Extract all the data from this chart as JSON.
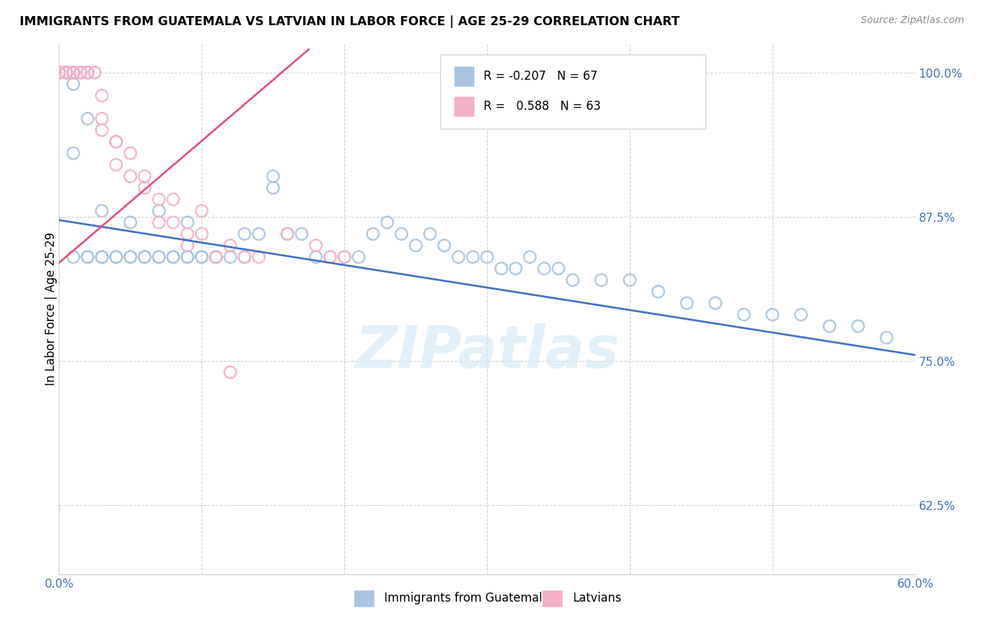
{
  "title": "IMMIGRANTS FROM GUATEMALA VS LATVIAN IN LABOR FORCE | AGE 25-29 CORRELATION CHART",
  "source": "Source: ZipAtlas.com",
  "ylabel": "In Labor Force | Age 25-29",
  "watermark": "ZIPatlas",
  "legend_label1": "Immigrants from Guatemala",
  "legend_label2": "Latvians",
  "r1": "-0.207",
  "n1": "67",
  "r2": "0.588",
  "n2": "63",
  "xmin": 0.0,
  "xmax": 0.6,
  "ymin": 0.565,
  "ymax": 1.025,
  "yticks": [
    0.625,
    0.75,
    0.875,
    1.0
  ],
  "ytick_labels": [
    "62.5%",
    "75.0%",
    "87.5%",
    "100.0%"
  ],
  "xticks": [
    0.0,
    0.1,
    0.2,
    0.3,
    0.4,
    0.5,
    0.6
  ],
  "xtick_labels": [
    "0.0%",
    "",
    "",
    "",
    "",
    "",
    "60.0%"
  ],
  "color_blue": "#a8c4e0",
  "color_pink": "#f4b0c4",
  "line_blue": "#4472c4",
  "line_pink": "#e85080",
  "axis_color": "#4472c4",
  "blue_trendline_x0": 0.0,
  "blue_trendline_y0": 0.872,
  "blue_trendline_x1": 0.6,
  "blue_trendline_y1": 0.755,
  "pink_trendline_x0": 0.0,
  "pink_trendline_y0": 0.835,
  "pink_trendline_x1": 0.175,
  "pink_trendline_y1": 1.02
}
